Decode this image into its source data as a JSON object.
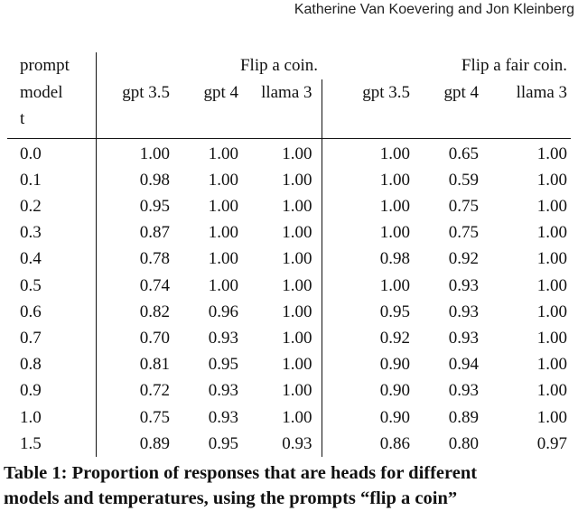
{
  "running_head": "Katherine Van Koevering and Jon Kleinberg",
  "table": {
    "row_header_labels": [
      "prompt",
      "model",
      "t"
    ],
    "prompt_groups": [
      "Flip a coin.",
      "Flip a fair coin."
    ],
    "models": [
      "gpt 3.5",
      "gpt 4",
      "llama 3",
      "gpt 3.5",
      "gpt 4",
      "llama 3"
    ],
    "rows": [
      {
        "t": "0.0",
        "values": [
          "1.00",
          "1.00",
          "1.00",
          "1.00",
          "0.65",
          "1.00"
        ]
      },
      {
        "t": "0.1",
        "values": [
          "0.98",
          "1.00",
          "1.00",
          "1.00",
          "0.59",
          "1.00"
        ]
      },
      {
        "t": "0.2",
        "values": [
          "0.95",
          "1.00",
          "1.00",
          "1.00",
          "0.75",
          "1.00"
        ]
      },
      {
        "t": "0.3",
        "values": [
          "0.87",
          "1.00",
          "1.00",
          "1.00",
          "0.75",
          "1.00"
        ]
      },
      {
        "t": "0.4",
        "values": [
          "0.78",
          "1.00",
          "1.00",
          "0.98",
          "0.92",
          "1.00"
        ]
      },
      {
        "t": "0.5",
        "values": [
          "0.74",
          "1.00",
          "1.00",
          "1.00",
          "0.93",
          "1.00"
        ]
      },
      {
        "t": "0.6",
        "values": [
          "0.82",
          "0.96",
          "1.00",
          "0.95",
          "0.93",
          "1.00"
        ]
      },
      {
        "t": "0.7",
        "values": [
          "0.70",
          "0.93",
          "1.00",
          "0.92",
          "0.93",
          "1.00"
        ]
      },
      {
        "t": "0.8",
        "values": [
          "0.81",
          "0.95",
          "1.00",
          "0.90",
          "0.94",
          "1.00"
        ]
      },
      {
        "t": "0.9",
        "values": [
          "0.72",
          "0.93",
          "1.00",
          "0.90",
          "0.93",
          "1.00"
        ]
      },
      {
        "t": "1.0",
        "values": [
          "0.75",
          "0.93",
          "1.00",
          "0.90",
          "0.89",
          "1.00"
        ]
      },
      {
        "t": "1.5",
        "values": [
          "0.89",
          "0.95",
          "0.93",
          "0.86",
          "0.80",
          "0.97"
        ]
      }
    ]
  },
  "caption": {
    "line1": "Table 1: Proportion of responses that are heads for different",
    "line2": "models and temperatures, using the prompts “flip a coin”"
  }
}
